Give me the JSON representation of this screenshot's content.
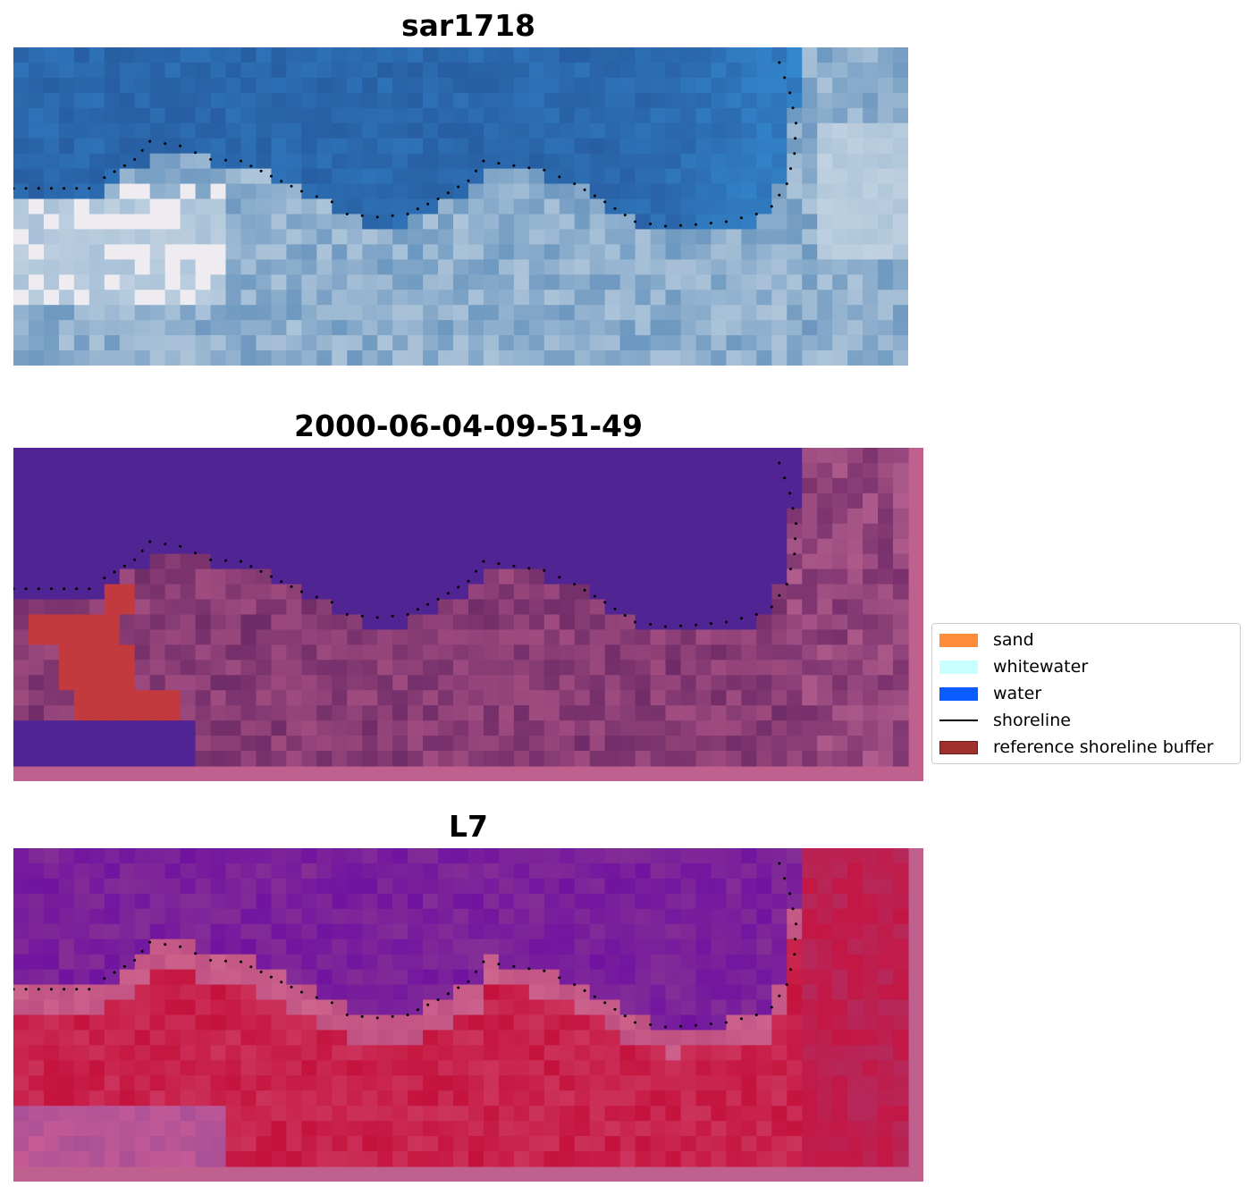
{
  "panels": [
    {
      "id": "rgb",
      "title": "sar1718"
    },
    {
      "id": "classified",
      "title": "2000-06-04-09-51-49"
    },
    {
      "id": "index",
      "title": "L7"
    }
  ],
  "legend": {
    "items": [
      {
        "label": "sand",
        "color": "#ff8c3a",
        "kind": "patch"
      },
      {
        "label": "whitewater",
        "color": "#c8ffff",
        "kind": "patch"
      },
      {
        "label": "water",
        "color": "#0a5cff",
        "kind": "patch"
      },
      {
        "label": "shoreline",
        "color": "#000000",
        "kind": "line"
      },
      {
        "label": "reference shoreline buffer",
        "color": "#a0302e",
        "kind": "patch"
      }
    ]
  },
  "colors": {
    "water_class": "#512494",
    "land_class": "#7e3a74",
    "buffer_frame": "#c0608f",
    "buffer_red": "#c2393e",
    "index_water": "#7a2a9e",
    "index_land": "#c81e4e"
  }
}
